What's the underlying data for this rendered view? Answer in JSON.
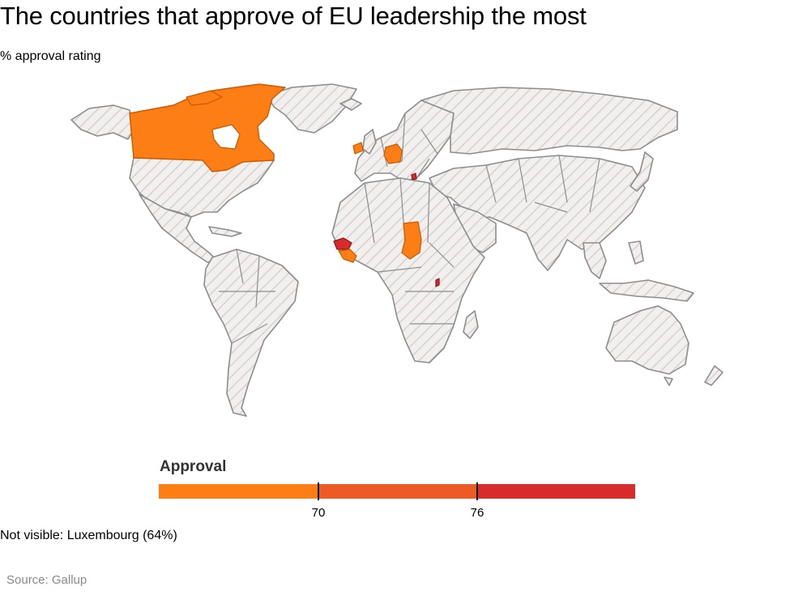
{
  "header": {
    "title": "The countries that approve of EU leadership the most",
    "subtitle": "% approval rating"
  },
  "map": {
    "base_fill": "#efeded",
    "border_color": "#8d8d8d",
    "highlighted_countries": [
      {
        "name": "Canada",
        "approval_band": "below 70",
        "color": "#fd7e15"
      },
      {
        "name": "Ireland",
        "approval_band": "below 70",
        "color": "#fd7e15"
      },
      {
        "name": "Germany",
        "approval_band": "below 70",
        "color": "#fd7e15"
      },
      {
        "name": "Kosovo",
        "approval_band": "76 and above",
        "color": "#d82b2b"
      },
      {
        "name": "Senegal",
        "approval_band": "76 and above",
        "color": "#d82b2b"
      },
      {
        "name": "Guinea",
        "approval_band": "below 70",
        "color": "#fd7e15"
      },
      {
        "name": "Liberia",
        "approval_band": "below 70",
        "color": "#fd7e15"
      },
      {
        "name": "Chad",
        "approval_band": "below 70",
        "color": "#fd7e15"
      },
      {
        "name": "Rwanda",
        "approval_band": "76 and above",
        "color": "#d82b2b"
      }
    ]
  },
  "legend": {
    "title": "Approval",
    "segments": [
      {
        "color": "#fd7e15"
      },
      {
        "color": "#ec5a25"
      },
      {
        "color": "#d82b2b"
      }
    ],
    "ticks": [
      {
        "label": "70",
        "value": 70
      },
      {
        "label": "76",
        "value": 76
      }
    ]
  },
  "note": "Not visible: Luxembourg (64%)",
  "source": "Source: Gallup"
}
